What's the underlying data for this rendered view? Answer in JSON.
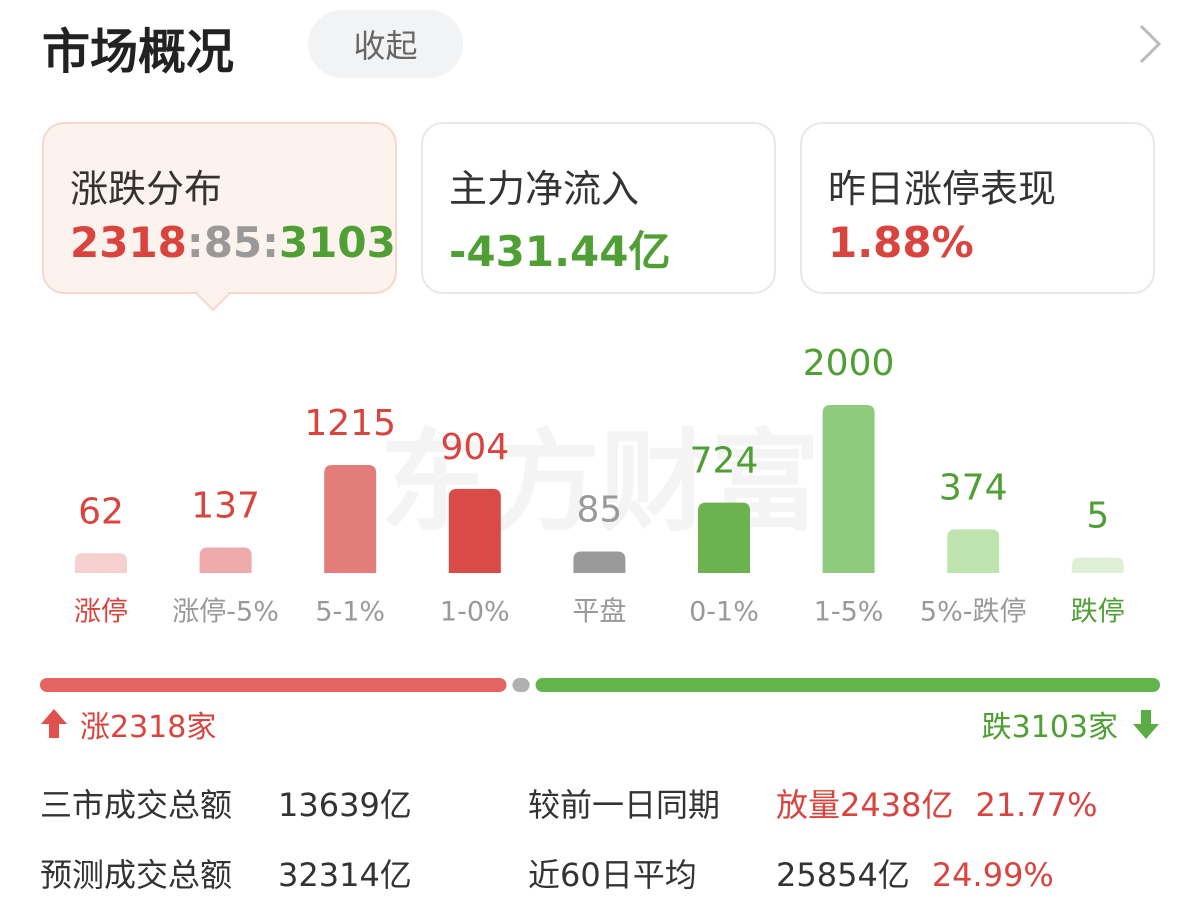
{
  "header": {
    "title": "市场概况",
    "collapse_button": "收起"
  },
  "cards": [
    {
      "label": "涨跌分布",
      "up": 2318,
      "flat": 85,
      "down": 3103,
      "separator": ":"
    },
    {
      "label": "主力净流入",
      "value": "-431.44亿"
    },
    {
      "label": "昨日涨停表现",
      "value": "1.88%"
    }
  ],
  "chart_data": {
    "type": "bar",
    "watermark": "东方财富",
    "categories": [
      "涨停",
      "涨停-5%",
      "5-1%",
      "1-0%",
      "平盘",
      "0-1%",
      "1-5%",
      "5%-跌停",
      "跌停"
    ],
    "values": [
      62,
      137,
      1215,
      904,
      85,
      724,
      2000,
      374,
      5
    ],
    "colors": [
      "#f6cfcf",
      "#efabab",
      "#e27d7a",
      "#d94b47",
      "#9a9a9a",
      "#6cb24e",
      "#8fcb7c",
      "#bde3ae",
      "#ddf0d6"
    ],
    "value_label_colors": [
      "#d9443f",
      "#d9443f",
      "#d9443f",
      "#d9443f",
      "#999999",
      "#4f9f34",
      "#4f9f34",
      "#4f9f34",
      "#4f9f34"
    ],
    "category_label_colors": [
      "#d9443f",
      "#999999",
      "#999999",
      "#999999",
      "#999999",
      "#999999",
      "#999999",
      "#999999",
      "#4f9f34"
    ]
  },
  "breadth": {
    "up_label": "涨2318家",
    "down_label": "跌3103家",
    "colors": {
      "up": "#e46461",
      "flat": "#b0b0b0",
      "down": "#62b54a"
    }
  },
  "stats": {
    "rows": [
      [
        "三市成交总额",
        "13639亿",
        "较前一日同期",
        "放量2438亿",
        "21.77%"
      ],
      [
        "预测成交总额",
        "32314亿",
        "近60日平均",
        "25854亿",
        "24.99%"
      ]
    ]
  }
}
